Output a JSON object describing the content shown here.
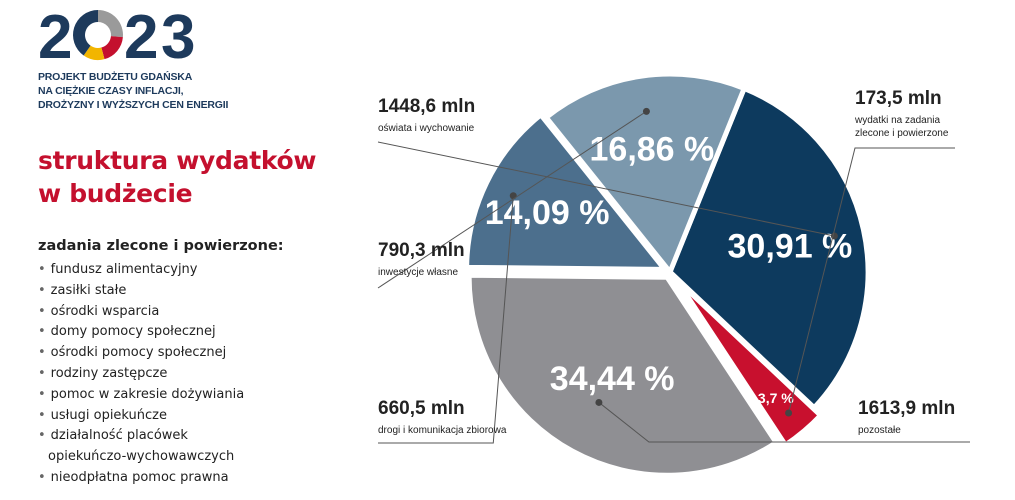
{
  "header": {
    "year_digits": [
      "2",
      "0",
      "2",
      "3"
    ],
    "subtitle_lines": [
      "PROJEKT BUDŻETU GDAŃSKA",
      "NA CIĘŻKIE CZASY INFLACJI,",
      "DROŻYZNY I WYŻSZYCH CEN ENERGII"
    ]
  },
  "title_lines": [
    "struktura wydatków",
    "w budżecie"
  ],
  "tasks": {
    "heading": "zadania zlecone i powierzone:",
    "items": [
      "fundusz alimentacyjny",
      "zasiłki stałe",
      "ośrodki wsparcia",
      "domy pomocy społecznej",
      "ośrodki pomocy społecznej",
      "rodziny zastępcze",
      "pomoc w zakresie dożywiania",
      "usługi opiekuńcze",
      "działalność placówek",
      "nieodpłatna pomoc prawna"
    ],
    "continuation": "opiekuńczo-wychowawczych"
  },
  "colors": {
    "navy": "#1d3a5c",
    "red": "#c4102e",
    "logo_gray": "#9a9a9a",
    "logo_yellow": "#f2b500"
  },
  "chart_data": {
    "type": "pie",
    "title": "",
    "slices": [
      {
        "label": "oświata i wychowanie",
        "amount": "1448,6 mln",
        "value": 30.91,
        "percent_label": "30,91 %",
        "color": "#0d3a5e"
      },
      {
        "label": "wydatki na zadania zlecone i powierzone",
        "label_lines": [
          "wydatki na zadania",
          "zlecone i powierzone"
        ],
        "amount": "173,5 mln",
        "value": 3.7,
        "percent_label": "3,7 %",
        "color": "#c8102e"
      },
      {
        "label": "pozostałe",
        "amount": "1613,9 mln",
        "value": 34.44,
        "percent_label": "34,44 %",
        "color": "#8f8f93"
      },
      {
        "label": "drogi i komunikacja zbiorowa",
        "amount": "660,5 mln",
        "value": 14.09,
        "percent_label": "14,09 %",
        "color": "#4c6f8d"
      },
      {
        "label": "inwestycje własne",
        "amount": "790,3 mln",
        "value": 16.86,
        "percent_label": "16,86 %",
        "color": "#7b98ad"
      }
    ]
  }
}
